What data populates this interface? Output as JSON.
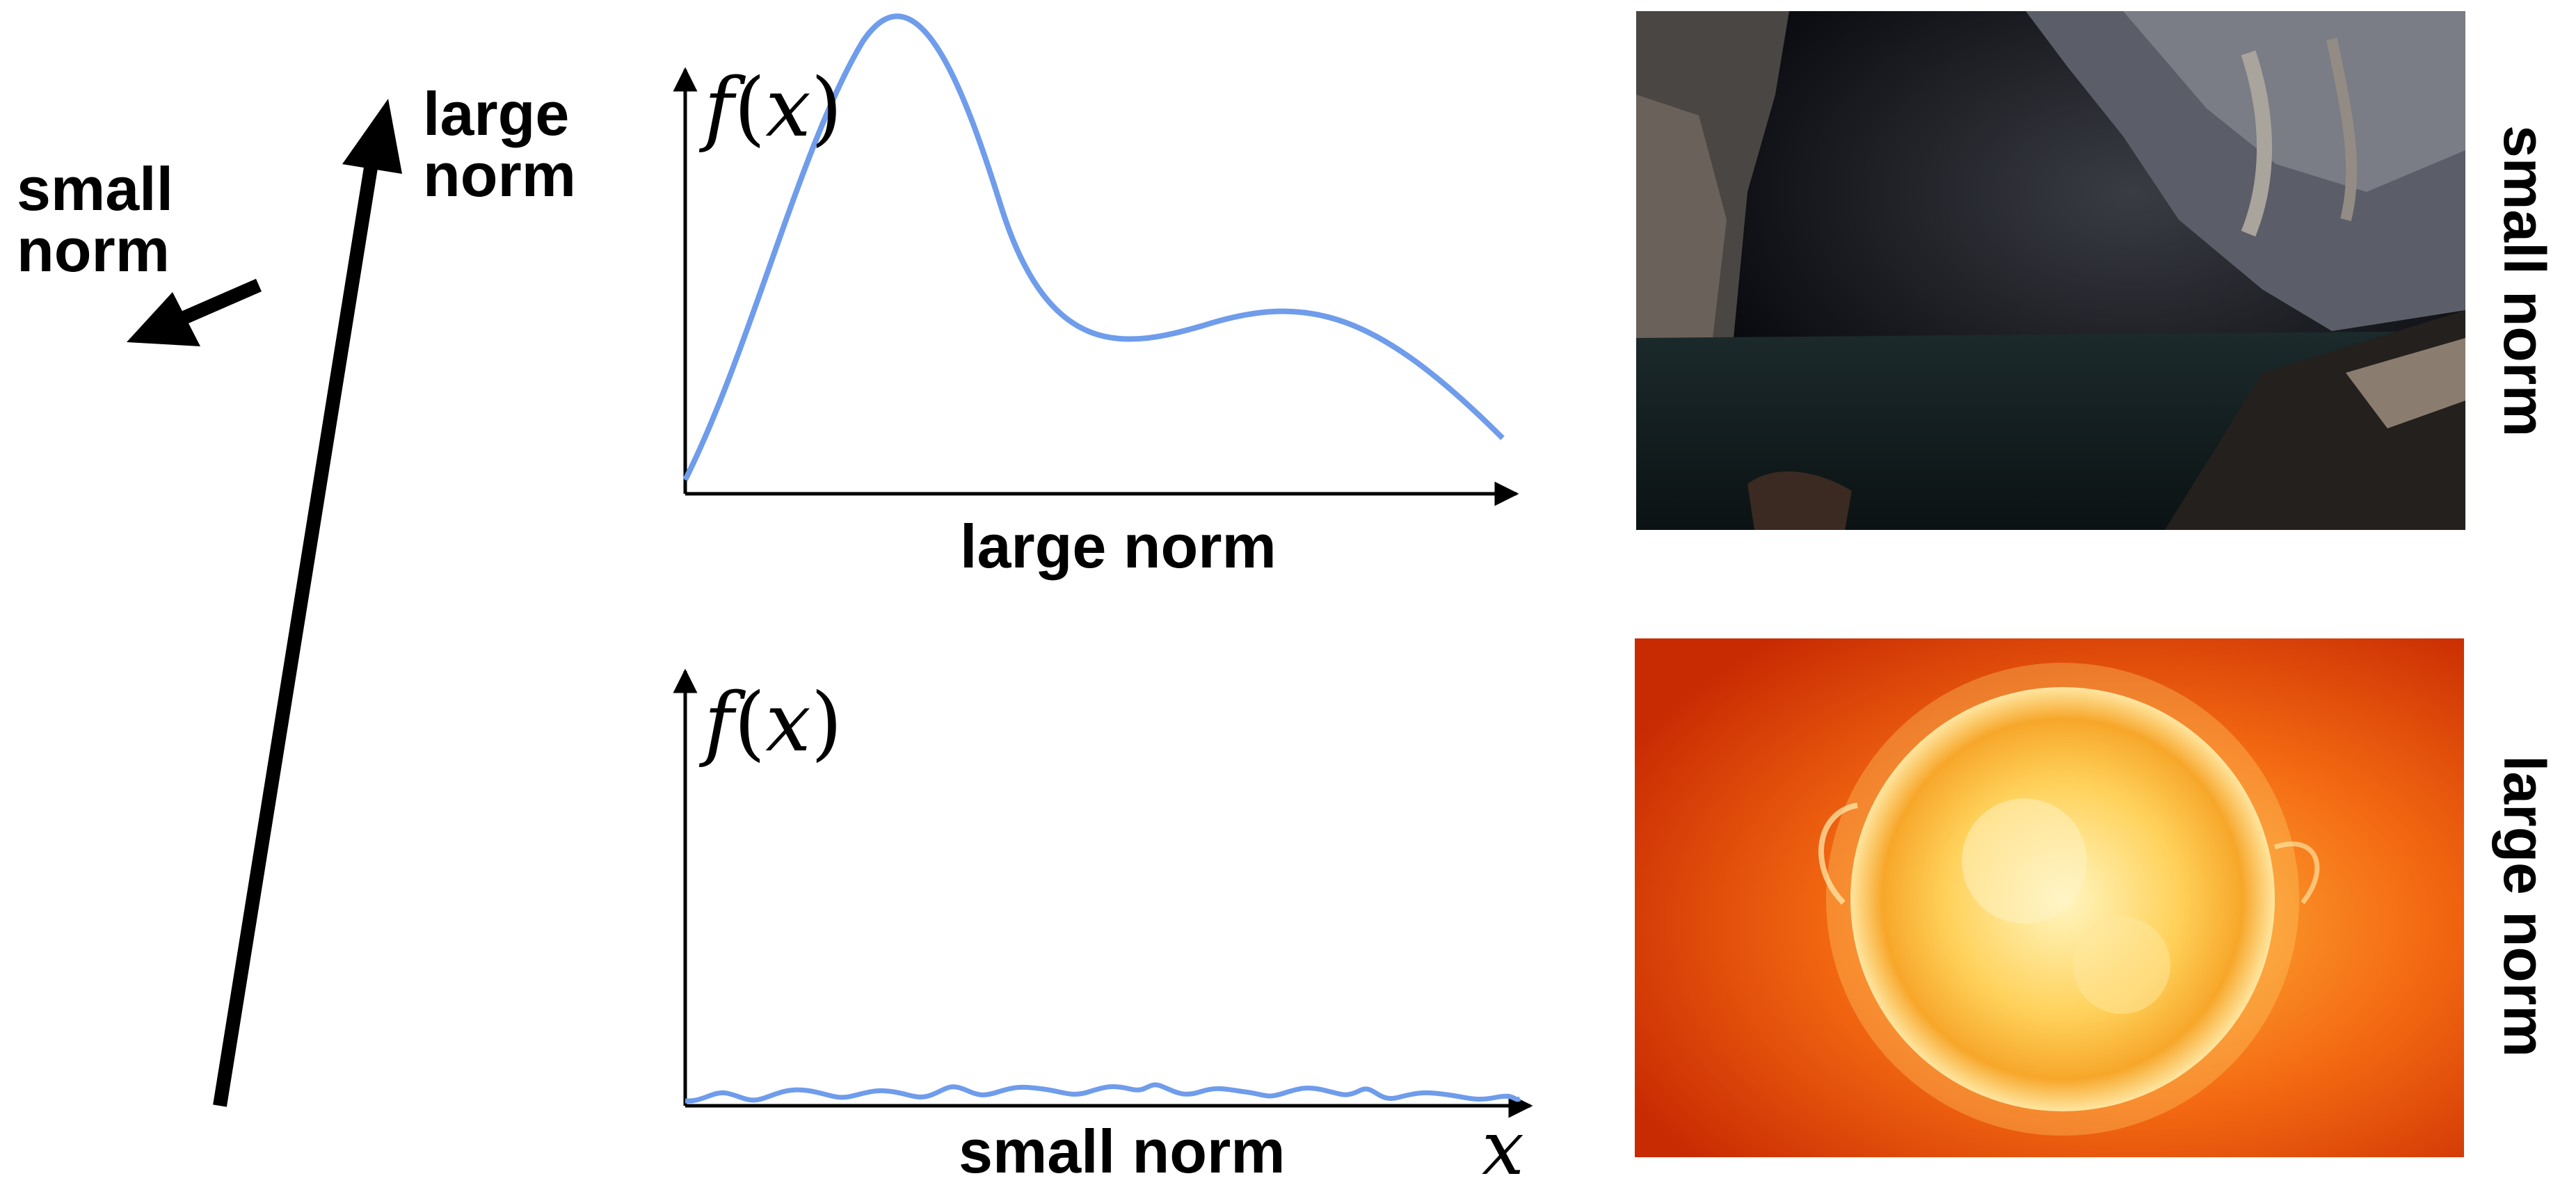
{
  "vectors": {
    "large_label_line1": "large",
    "large_label_line2": "norm",
    "small_label_line1": "small",
    "small_label_line2": "norm"
  },
  "plots": {
    "top": {
      "ylabel_f": "f",
      "ylabel_open": "(",
      "ylabel_x": "x",
      "ylabel_close": ")",
      "caption": "large norm",
      "curve_color": "#6f9ceb"
    },
    "bottom": {
      "ylabel_f": "f",
      "ylabel_open": "(",
      "ylabel_x": "x",
      "ylabel_close": ")",
      "caption": "small norm",
      "xlabel": "x",
      "curve_color": "#6f9ceb"
    }
  },
  "images": {
    "top": {
      "subject": "dark cave with underground pool",
      "side_label": "small norm"
    },
    "bottom": {
      "subject": "bright glowing sun",
      "side_label": "large norm"
    }
  }
}
